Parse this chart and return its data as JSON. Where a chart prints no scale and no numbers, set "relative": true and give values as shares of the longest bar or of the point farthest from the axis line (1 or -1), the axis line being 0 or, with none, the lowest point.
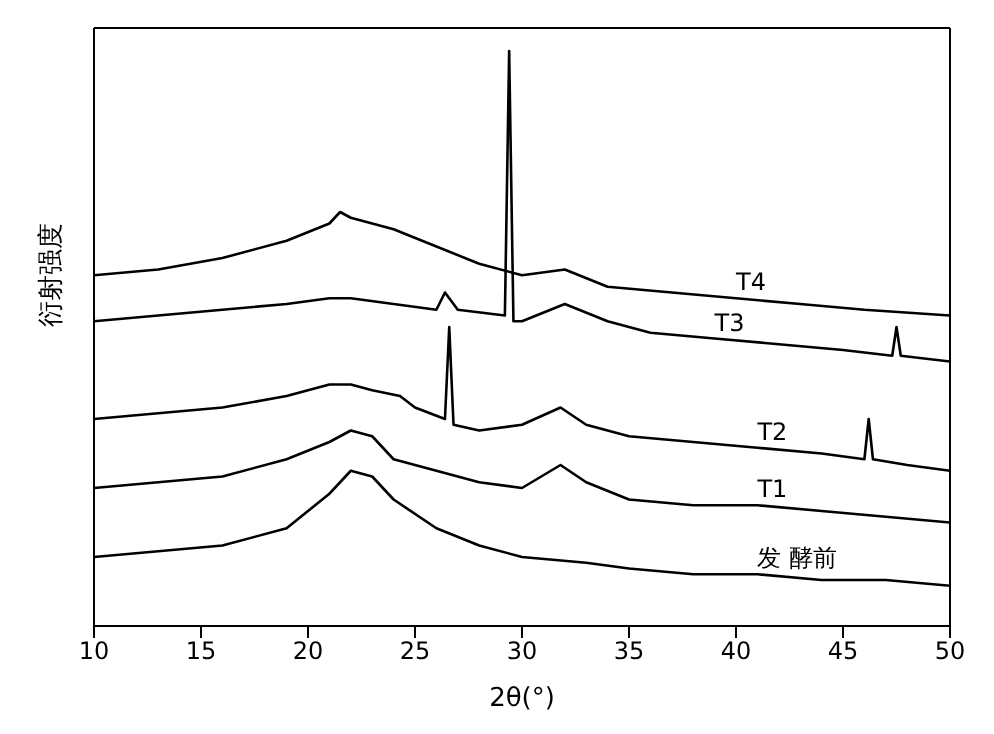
{
  "chart_data": {
    "type": "line",
    "xlabel": "2θ(°)",
    "ylabel": "衍射强度",
    "relative": true,
    "xlim": [
      10,
      50
    ],
    "xticks": [
      10,
      15,
      20,
      25,
      30,
      35,
      40,
      45,
      50
    ],
    "tick_labels": "x",
    "marker": "none",
    "line_style": "solid",
    "series": [
      {
        "name": "T4",
        "color": "#000000",
        "x": [
          10,
          13,
          16,
          19,
          21,
          21.5,
          22,
          24,
          26,
          28,
          30,
          32,
          34,
          37,
          40,
          43,
          46,
          50
        ],
        "values": [
          0.61,
          0.62,
          0.64,
          0.67,
          0.7,
          0.72,
          0.71,
          0.69,
          0.66,
          0.63,
          0.61,
          0.62,
          0.59,
          0.58,
          0.57,
          0.56,
          0.55,
          0.54
        ]
      },
      {
        "name": "T3",
        "color": "#000000",
        "x": [
          10,
          13,
          16,
          19,
          21,
          22,
          24,
          26,
          26.4,
          27,
          29.2,
          29.4,
          29.6,
          30,
          32,
          34,
          36,
          39,
          42,
          45,
          47.3,
          47.5,
          47.7,
          50
        ],
        "values": [
          0.53,
          0.54,
          0.55,
          0.56,
          0.57,
          0.57,
          0.56,
          0.55,
          0.58,
          0.55,
          0.54,
          1,
          0.53,
          0.53,
          0.56,
          0.53,
          0.51,
          0.5,
          0.49,
          0.48,
          0.47,
          0.52,
          0.47,
          0.46
        ]
      },
      {
        "name": "T2",
        "color": "#000000",
        "x": [
          10,
          13,
          16,
          19,
          21,
          22,
          23,
          24.3,
          25,
          26.4,
          26.6,
          26.8,
          28,
          30,
          31.8,
          33,
          35,
          38,
          41,
          44,
          46,
          46.2,
          46.4,
          48,
          50
        ],
        "values": [
          0.36,
          0.37,
          0.38,
          0.4,
          0.42,
          0.42,
          0.41,
          0.4,
          0.38,
          0.36,
          0.52,
          0.35,
          0.34,
          0.35,
          0.38,
          0.35,
          0.33,
          0.32,
          0.31,
          0.3,
          0.29,
          0.36,
          0.29,
          0.28,
          0.27
        ]
      },
      {
        "name": "T1",
        "color": "#000000",
        "x": [
          10,
          13,
          16,
          19,
          21,
          22,
          23,
          24,
          26,
          28,
          30,
          31.8,
          33,
          35,
          38,
          41,
          44,
          47,
          50
        ],
        "values": [
          0.24,
          0.25,
          0.26,
          0.29,
          0.32,
          0.34,
          0.33,
          0.29,
          0.27,
          0.25,
          0.24,
          0.28,
          0.25,
          0.22,
          0.21,
          0.21,
          0.2,
          0.19,
          0.18
        ]
      },
      {
        "name": "发 酵前",
        "color": "#000000",
        "x": [
          10,
          13,
          16,
          19,
          21,
          22,
          23,
          24,
          26,
          28,
          30,
          33,
          35,
          38,
          41,
          44,
          47,
          50
        ],
        "values": [
          0.12,
          0.13,
          0.14,
          0.17,
          0.23,
          0.27,
          0.26,
          0.22,
          0.17,
          0.14,
          0.12,
          0.11,
          0.1,
          0.09,
          0.09,
          0.08,
          0.08,
          0.07
        ]
      }
    ]
  }
}
